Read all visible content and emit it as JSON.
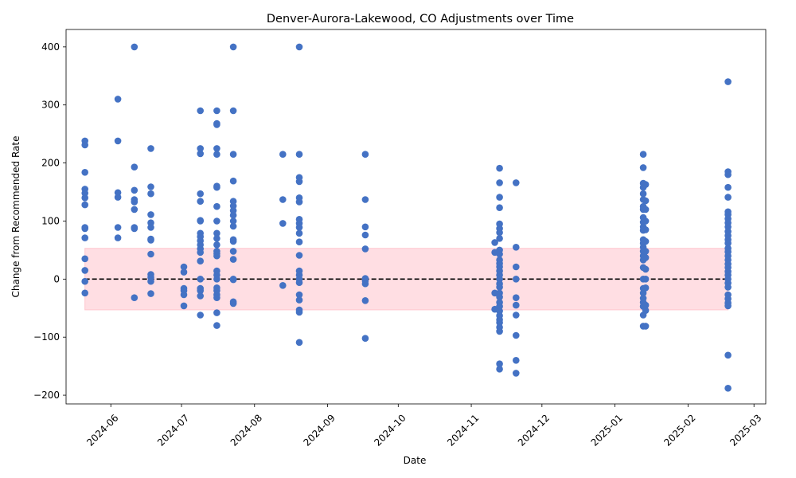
{
  "chart_data": {
    "type": "scatter",
    "title": "Denver-Aurora-Lakewood, CO Adjustments over Time",
    "xlabel": "Date",
    "ylabel": "Change from Recommended Rate",
    "x_axis_kind": "date",
    "xlim": [
      "2024-05-13",
      "2025-03-06"
    ],
    "ylim": [
      -215,
      430
    ],
    "x_ticks": [
      "2024-06",
      "2024-07",
      "2024-08",
      "2024-09",
      "2024-10",
      "2024-11",
      "2024-12",
      "2025-01",
      "2025-02",
      "2025-03"
    ],
    "y_ticks": [
      -200,
      -100,
      0,
      100,
      200,
      300,
      400
    ],
    "grid": false,
    "point_color": "#4472c4",
    "reference_line": {
      "y": 0,
      "style": "dashed",
      "color": "#000000",
      "x_from": "2024-05-21",
      "x_to": "2025-02-18"
    },
    "band": {
      "y_low": -53,
      "y_high": 53,
      "color": "#ffb6c1",
      "x_from": "2024-05-21",
      "x_to": "2025-02-18"
    },
    "series": [
      {
        "points": [
          {
            "date": "2024-05-21",
            "values": [
              238,
              231,
              184,
              155,
              148,
              140,
              128,
              89,
              87,
              71,
              35,
              15,
              -4,
              -24
            ]
          },
          {
            "date": "2024-06-04",
            "values": [
              310,
              238,
              149,
              141,
              89,
              71
            ]
          },
          {
            "date": "2024-06-11",
            "values": [
              400,
              193,
              153,
              137,
              133,
              120,
              89,
              87,
              -32
            ]
          },
          {
            "date": "2024-06-18",
            "values": [
              225,
              159,
              147,
              111,
              97,
              89,
              69,
              67,
              43,
              8,
              3,
              -4,
              -25
            ]
          },
          {
            "date": "2024-07-02",
            "values": [
              21,
              12,
              -16,
              -20,
              -27,
              -46
            ]
          },
          {
            "date": "2024-07-09",
            "values": [
              290,
              225,
              216,
              147,
              134,
              101,
              100,
              79,
              73,
              66,
              59,
              52,
              46,
              31,
              0,
              -16,
              -20,
              -29,
              -62
            ]
          },
          {
            "date": "2024-07-16",
            "values": [
              290,
              268,
              266,
              225,
              215,
              160,
              158,
              125,
              100,
              79,
              70,
              59,
              48,
              44,
              40,
              14,
              7,
              0,
              -15,
              -20,
              -27,
              -32,
              -58,
              -80
            ]
          },
          {
            "date": "2024-07-23",
            "values": [
              400,
              290,
              215,
              169,
              134,
              126,
              118,
              110,
              100,
              91,
              68,
              65,
              48,
              34,
              0,
              -1,
              -39,
              -42
            ]
          },
          {
            "date": "2024-08-13",
            "values": [
              215,
              137,
              96,
              -11
            ]
          },
          {
            "date": "2024-08-20",
            "values": [
              400,
              215,
              175,
              168,
              140,
              133,
              103,
              96,
              89,
              79,
              64,
              41,
              14,
              7,
              0,
              -6,
              -27,
              -36,
              -53,
              -57,
              -109
            ]
          },
          {
            "date": "2024-09-17",
            "values": [
              215,
              137,
              90,
              76,
              52,
              1,
              -3,
              -8,
              -37,
              -102
            ]
          },
          {
            "date": "2024-11-11",
            "values": [
              63,
              46,
              -24,
              -52
            ]
          },
          {
            "date": "2024-11-13",
            "values": [
              191,
              166,
              141,
              123,
              95,
              87,
              80,
              70,
              50,
              43,
              33,
              27,
              21,
              14,
              7,
              0,
              -8,
              -14,
              -24,
              -31,
              -40,
              -47,
              -55,
              -63,
              -70,
              -75,
              -83,
              -90,
              -146,
              -155
            ]
          },
          {
            "date": "2024-11-20",
            "values": [
              166,
              55,
              21,
              0,
              -32,
              -45,
              -62,
              -97,
              -140,
              -162
            ]
          },
          {
            "date": "2025-01-13",
            "values": [
              215,
              192,
              165,
              158,
              147,
              137,
              125,
              120,
              106,
              98,
              90,
              84,
              68,
              62,
              55,
              48,
              40,
              33,
              20,
              0,
              -16,
              -24,
              -33,
              -40,
              -47,
              -62,
              -81
            ]
          },
          {
            "date": "2025-01-14",
            "values": [
              163,
              135,
              120,
              100,
              85,
              65,
              48,
              37,
              17,
              0,
              -15,
              -45,
              -54,
              -81
            ]
          },
          {
            "date": "2025-02-18",
            "values": [
              340,
              185,
              180,
              158,
              141,
              116,
              111,
              104,
              97,
              90,
              82,
              75,
              68,
              62,
              53,
              47,
              40,
              33,
              26,
              20,
              13,
              7,
              0,
              -7,
              -14,
              -27,
              -34,
              -41,
              -46,
              -131,
              -188
            ]
          }
        ]
      }
    ]
  }
}
